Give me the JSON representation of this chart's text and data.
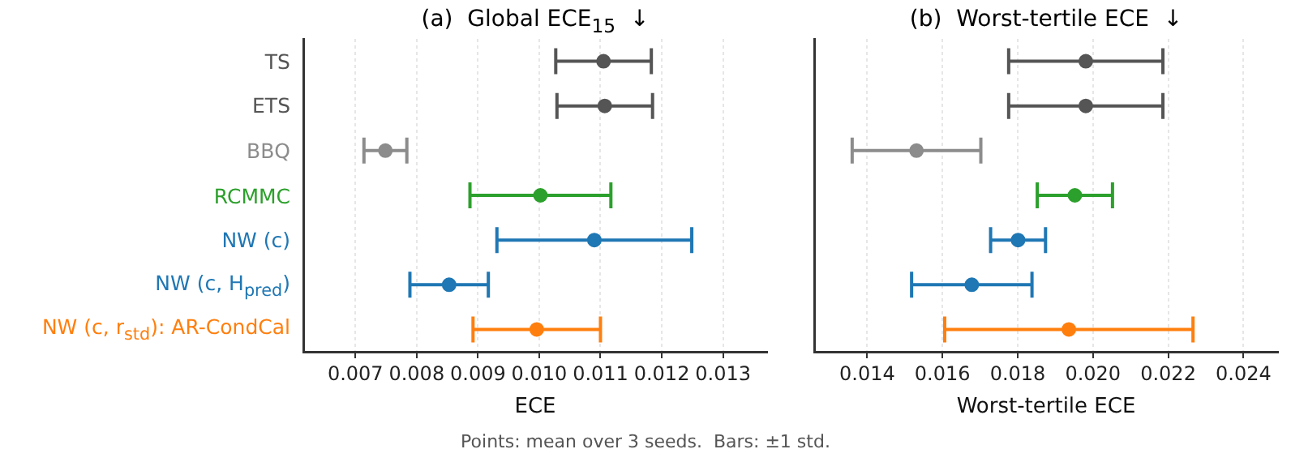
{
  "chart_data": [
    {
      "type": "scatter",
      "orientation": "horizontal",
      "title": "(a)  Global ECE$_{15}$  ↓",
      "xlabel": "ECE",
      "categories": [
        "TS",
        "ETS",
        "BBQ",
        "RCMMC",
        "NW (c)",
        "NW (c, H$_{pred}$)",
        "NW (c, r$_{std}$): AR-CondCal"
      ],
      "values": [
        0.01105,
        0.01107,
        0.00749,
        0.01002,
        0.0109,
        0.00853,
        0.00996
      ],
      "errors": [
        0.00078,
        0.00078,
        0.00035,
        0.00115,
        0.00159,
        0.00064,
        0.00104
      ],
      "colors": [
        "#555555",
        "#555555",
        "#8c8c8c",
        "#2ca02c",
        "#1f77b4",
        "#1f77b4",
        "#ff7f0e"
      ],
      "xlim": [
        0.00615,
        0.01372
      ],
      "xticks": [
        {
          "value": 0.007,
          "label": "0.007"
        },
        {
          "value": 0.008,
          "label": "0.008"
        },
        {
          "value": 0.009,
          "label": "0.009"
        },
        {
          "value": 0.01,
          "label": "0.010"
        },
        {
          "value": 0.011,
          "label": "0.011"
        },
        {
          "value": 0.012,
          "label": "0.012"
        },
        {
          "value": 0.013,
          "label": "0.013"
        }
      ],
      "grid": "x",
      "marker": "circle",
      "annotations": [
        "Points: mean over 3 seeds.  Bars: ±1 std."
      ]
    },
    {
      "type": "scatter",
      "orientation": "horizontal",
      "title": "(b)  Worst-tertile ECE  ↓",
      "xlabel": "Worst-tertile ECE",
      "values": [
        0.01981,
        0.01981,
        0.01531,
        0.01952,
        0.01801,
        0.01678,
        0.01936
      ],
      "errors": [
        0.00205,
        0.00205,
        0.00171,
        0.001,
        0.00073,
        0.0016,
        0.0033
      ],
      "colors": [
        "#555555",
        "#555555",
        "#8c8c8c",
        "#2ca02c",
        "#1f77b4",
        "#1f77b4",
        "#ff7f0e"
      ],
      "xlim": [
        0.01259,
        0.02492
      ],
      "xticks": [
        {
          "value": 0.014,
          "label": "0.014"
        },
        {
          "value": 0.016,
          "label": "0.016"
        },
        {
          "value": 0.018,
          "label": "0.018"
        },
        {
          "value": 0.02,
          "label": "0.020"
        },
        {
          "value": 0.022,
          "label": "0.022"
        },
        {
          "value": 0.024,
          "label": "0.024"
        }
      ],
      "grid": "x",
      "marker": "circle",
      "tick_labels": "x"
    }
  ]
}
